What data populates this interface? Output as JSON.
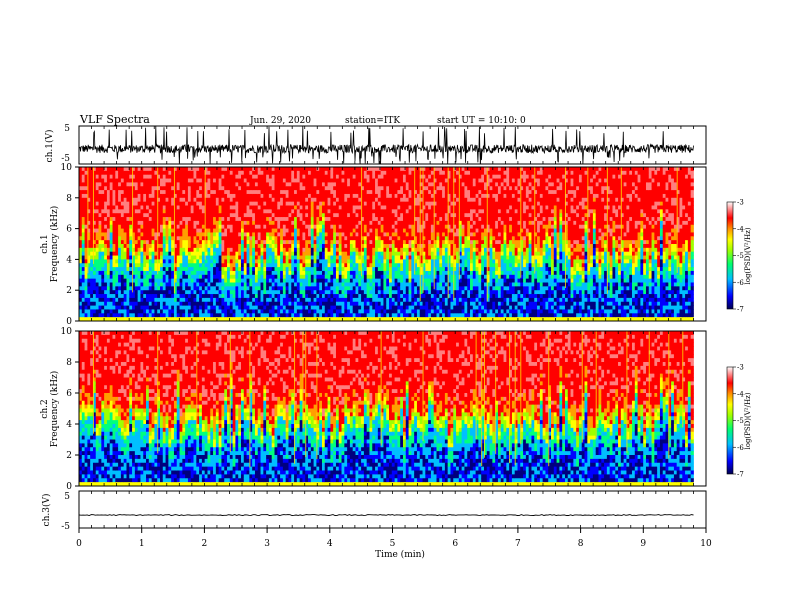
{
  "header": {
    "title": "VLF Spectra",
    "date": "Jun. 29, 2020",
    "station": "station=ITK",
    "start": "start UT = 10:10: 0"
  },
  "chart_data": [
    {
      "id": "ch1_waveform",
      "type": "line",
      "ylabel": "ch.1(V)",
      "xlim": [
        0,
        10
      ],
      "ylim": [
        -5,
        5
      ],
      "yticks": [
        "5",
        "-5"
      ],
      "note_values": "noisy waveform, baseline near -1 V with frequent spikes to ±5 V"
    },
    {
      "id": "ch1_spectrogram",
      "type": "heatmap",
      "ylabel": "ch.1\nFrequency (kHz)",
      "xlim": [
        0,
        10
      ],
      "ylim": [
        0,
        10
      ],
      "yticks": [
        "0",
        "2",
        "4",
        "6",
        "8",
        "10"
      ],
      "colorbar": {
        "label": "log(PSD)(V²/Hz)",
        "range": [
          -7,
          -3
        ],
        "ticks": [
          "-3",
          "-4",
          "-5",
          "-6",
          "-7"
        ]
      }
    },
    {
      "id": "ch2_spectrogram",
      "type": "heatmap",
      "ylabel": "ch.2\nFrequency (kHz)",
      "xlim": [
        0,
        10
      ],
      "ylim": [
        0,
        10
      ],
      "yticks": [
        "0",
        "2",
        "4",
        "6",
        "8",
        "10"
      ],
      "colorbar": {
        "label": "log(PSD)(V²/Hz)",
        "range": [
          -7,
          -3
        ],
        "ticks": [
          "-3",
          "-4",
          "-5",
          "-6",
          "-7"
        ]
      }
    },
    {
      "id": "ch3_waveform",
      "type": "line",
      "ylabel": "ch.3(V)",
      "xlim": [
        0,
        10
      ],
      "ylim": [
        -5,
        5
      ],
      "yticks": [
        "5",
        "-5"
      ],
      "baseline": -1.5
    }
  ],
  "xaxis": {
    "label": "Time (min)",
    "ticks": [
      "0",
      "1",
      "2",
      "3",
      "4",
      "5",
      "6",
      "7",
      "8",
      "9",
      "10"
    ],
    "data_end": 9.8
  },
  "colors": {
    "ink": "#000000",
    "spectrum": [
      "#00007f",
      "#0000ff",
      "#00bfff",
      "#00ff7f",
      "#9fff00",
      "#ffff00",
      "#ff9f00",
      "#ff0000",
      "#ff7f7f",
      "#ffffff"
    ]
  }
}
